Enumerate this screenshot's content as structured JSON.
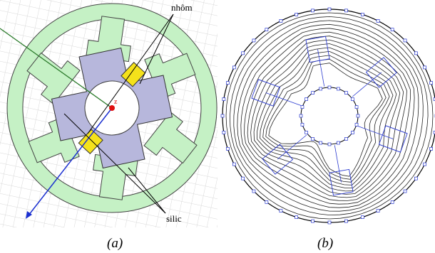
{
  "labels": {
    "aluminum": "nhôm",
    "silicon": "silic",
    "axis": "z"
  },
  "captions": [
    "(a)",
    "(b)"
  ]
}
